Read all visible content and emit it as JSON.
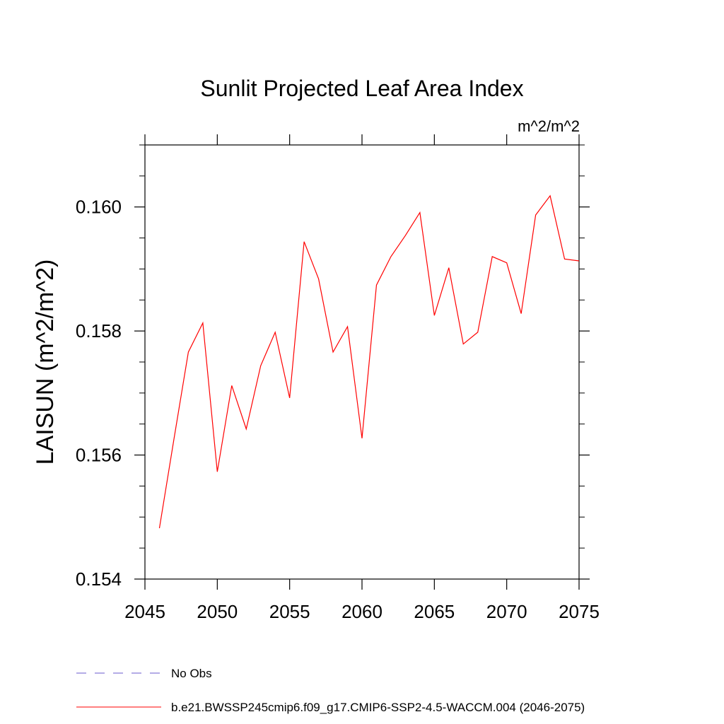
{
  "chart_data": {
    "type": "line",
    "title": "Sunlit Projected Leaf Area Index",
    "units": "m^2/m^2",
    "ylabel": "LAISUN  (m^2/m^2)",
    "xlabel": "",
    "xlim": [
      2045,
      2075
    ],
    "ylim": [
      0.154,
      0.161
    ],
    "xticks": [
      2045,
      2050,
      2055,
      2060,
      2065,
      2070,
      2075
    ],
    "yticks": [
      0.154,
      0.156,
      0.158,
      0.16
    ],
    "ytick_labels": [
      "0.154",
      "0.156",
      "0.158",
      "0.160"
    ],
    "grid": false,
    "legend_position": "bottom",
    "series": [
      {
        "name": "b.e21.BWSSP245cmip6.f09_g17.CMIP6-SSP2-4.5-WACCM.004 (2046-2075)",
        "color": "#ff0000",
        "style": "solid",
        "x": [
          2046,
          2047,
          2048,
          2049,
          2050,
          2051,
          2052,
          2053,
          2054,
          2055,
          2056,
          2057,
          2058,
          2059,
          2060,
          2061,
          2062,
          2063,
          2064,
          2065,
          2066,
          2067,
          2068,
          2069,
          2070,
          2071,
          2072,
          2073,
          2074,
          2075
        ],
        "y": [
          0.15482,
          0.15625,
          0.15766,
          0.15813,
          0.15573,
          0.15712,
          0.15642,
          0.15744,
          0.15798,
          0.15692,
          0.15944,
          0.15884,
          0.15766,
          0.15807,
          0.15627,
          0.15874,
          0.1592,
          0.15954,
          0.15991,
          0.15825,
          0.15902,
          0.15779,
          0.15798,
          0.1592,
          0.1591,
          0.15828,
          0.15987,
          0.16018,
          0.15916,
          0.15913
        ]
      }
    ],
    "legend": [
      {
        "label": "No Obs",
        "color": "#6a5acd",
        "style": "dashed"
      },
      {
        "label": "b.e21.BWSSP245cmip6.f09_g17.CMIP6-SSP2-4.5-WACCM.004 (2046-2075)",
        "color": "#ff0000",
        "style": "solid"
      }
    ]
  }
}
